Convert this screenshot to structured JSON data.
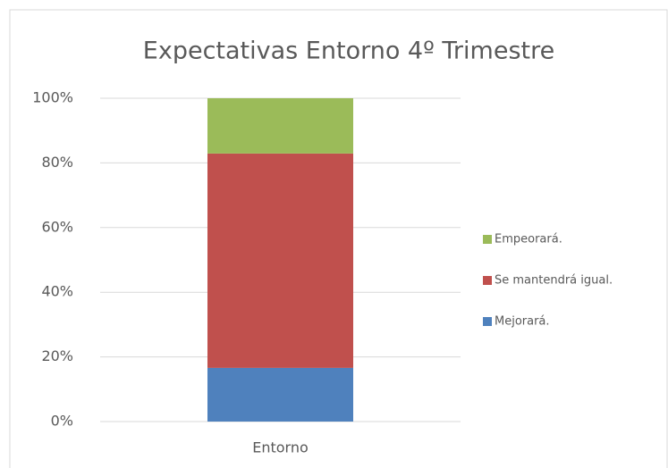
{
  "chart_data": {
    "type": "stacked_bar",
    "title": "Expectativas Entorno 4º Trimestre",
    "categories": [
      "Entorno"
    ],
    "series": [
      {
        "name": "Mejorará.",
        "color": "#4f81bd",
        "values": [
          16.6
        ]
      },
      {
        "name": "Se mantendrá igual.",
        "color": "#c0504d",
        "values": [
          66.3
        ]
      },
      {
        "name": "Empeorará.",
        "color": "#9bbb59",
        "values": [
          17.1
        ]
      }
    ],
    "ylim": [
      0,
      100
    ],
    "yticks": [
      {
        "value": 0,
        "label": "0%"
      },
      {
        "value": 20,
        "label": "20%"
      },
      {
        "value": 40,
        "label": "40%"
      },
      {
        "value": 60,
        "label": "60%"
      },
      {
        "value": 80,
        "label": "80%"
      },
      {
        "value": 100,
        "label": "100%"
      }
    ],
    "grid": true,
    "legend": "right"
  }
}
